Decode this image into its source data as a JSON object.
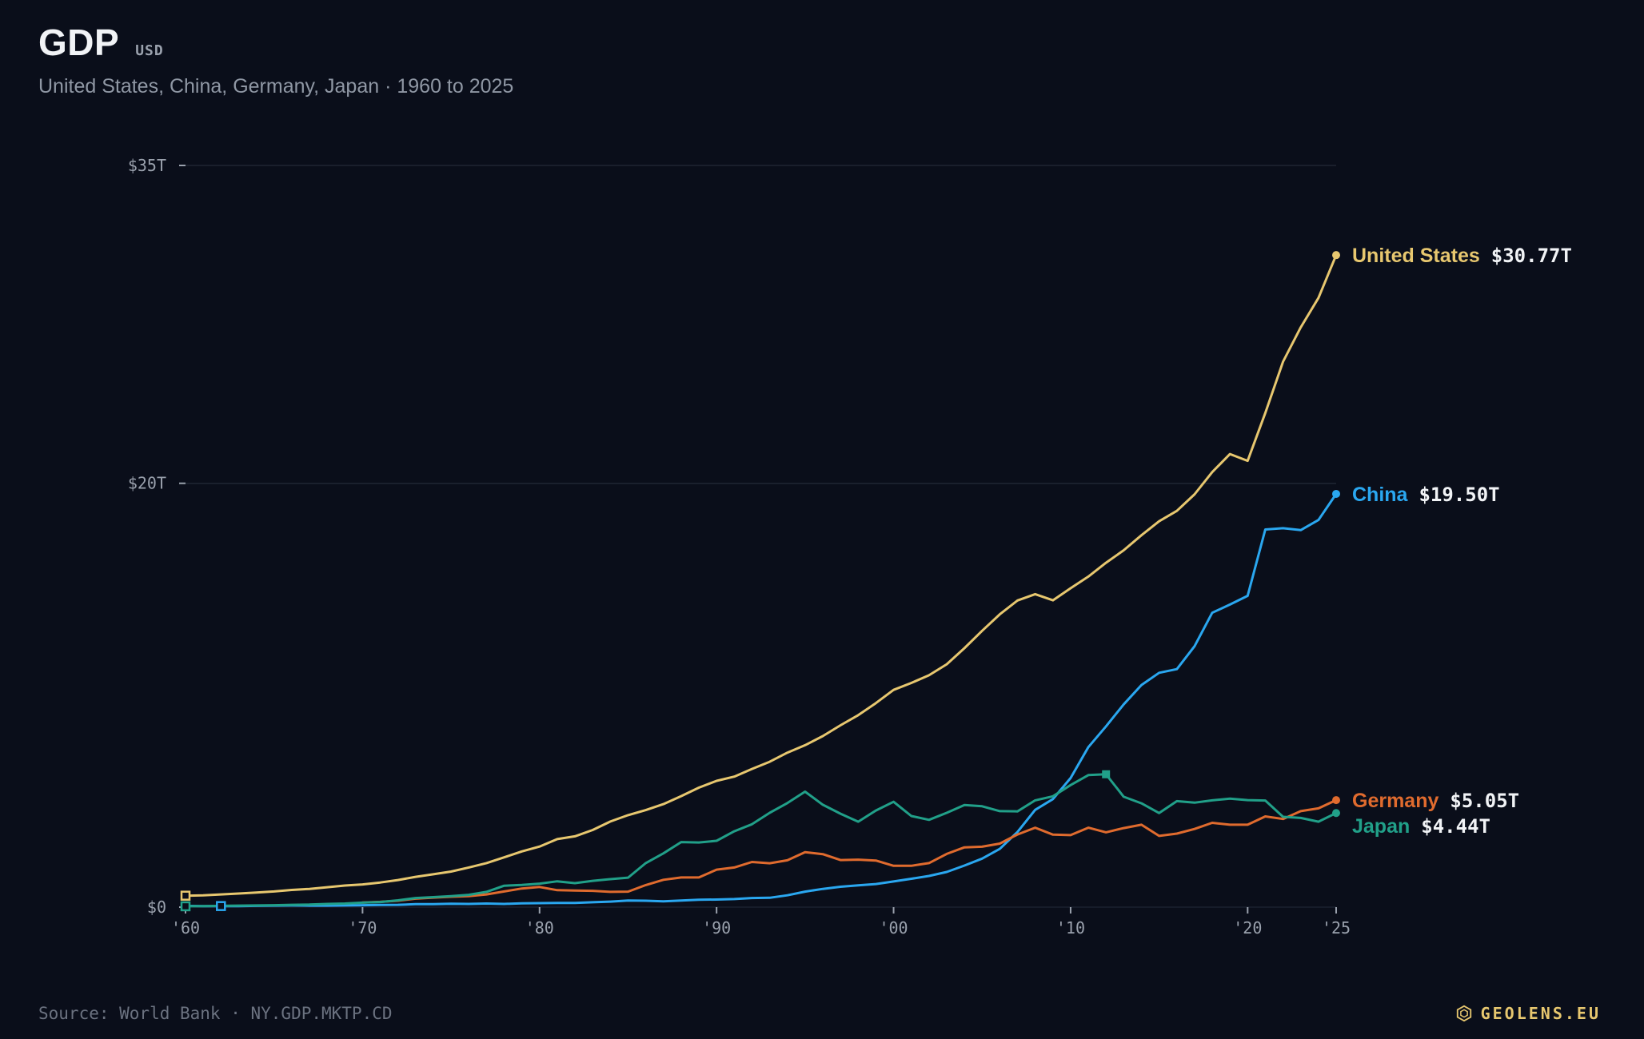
{
  "header": {
    "title": "GDP",
    "unit": "USD",
    "subtitle": "United States, China, Germany, Japan · 1960 to 2025"
  },
  "footer": {
    "source": "Source: World Bank · NY.GDP.MKTP.CD",
    "brand": "GEOLENS.EU",
    "brand_icon": "hexagon-logo-icon"
  },
  "colors": {
    "background": "#0a0e1a",
    "grid": "#1f2533",
    "axis_text": "#9aa1ad",
    "value_text": "#f1f3f6"
  },
  "chart_data": {
    "type": "line",
    "x_range": [
      1960,
      2025
    ],
    "ylim": [
      0,
      35
    ],
    "y_ticks": [
      {
        "value": 0,
        "label": "$0"
      },
      {
        "value": 20,
        "label": "$20T"
      },
      {
        "value": 35,
        "label": "$35T"
      }
    ],
    "x_ticks": [
      {
        "value": 1960,
        "label": "'60"
      },
      {
        "value": 1970,
        "label": "'70"
      },
      {
        "value": 1980,
        "label": "'80"
      },
      {
        "value": 1990,
        "label": "'90"
      },
      {
        "value": 2000,
        "label": "'00"
      },
      {
        "value": 2010,
        "label": "'10"
      },
      {
        "value": 2020,
        "label": "'20"
      },
      {
        "value": 2025,
        "label": "'25"
      }
    ],
    "grid": true,
    "legend": "end-labels",
    "series": [
      {
        "name": "United States",
        "color": "#e7c76f",
        "end_value_label": "$30.77T",
        "start_year": 1960,
        "values": [
          0.54,
          0.56,
          0.6,
          0.64,
          0.69,
          0.74,
          0.81,
          0.86,
          0.94,
          1.02,
          1.07,
          1.16,
          1.28,
          1.43,
          1.55,
          1.68,
          1.87,
          2.08,
          2.35,
          2.63,
          2.86,
          3.21,
          3.34,
          3.64,
          4.04,
          4.34,
          4.58,
          4.86,
          5.24,
          5.64,
          5.96,
          6.16,
          6.52,
          6.86,
          7.29,
          7.64,
          8.07,
          8.58,
          9.06,
          9.63,
          10.25,
          10.58,
          10.94,
          11.46,
          12.22,
          13.04,
          13.82,
          14.47,
          14.77,
          14.48,
          15.05,
          15.6,
          16.25,
          16.84,
          17.55,
          18.21,
          18.7,
          19.48,
          20.53,
          21.38,
          21.06,
          23.32,
          25.74,
          27.36,
          28.75,
          30.77
        ]
      },
      {
        "name": "China",
        "color": "#2aa7f0",
        "end_value_label": "$19.50T",
        "start_year": 1960,
        "values": [
          0.06,
          0.05,
          0.05,
          0.05,
          0.06,
          0.07,
          0.08,
          0.07,
          0.07,
          0.08,
          0.09,
          0.1,
          0.11,
          0.14,
          0.14,
          0.16,
          0.15,
          0.17,
          0.15,
          0.18,
          0.19,
          0.2,
          0.2,
          0.23,
          0.26,
          0.31,
          0.3,
          0.27,
          0.31,
          0.35,
          0.36,
          0.38,
          0.43,
          0.44,
          0.56,
          0.73,
          0.86,
          0.96,
          1.03,
          1.09,
          1.21,
          1.34,
          1.47,
          1.66,
          1.96,
          2.29,
          2.75,
          3.55,
          4.59,
          5.1,
          6.09,
          7.55,
          8.53,
          9.57,
          10.48,
          11.06,
          11.23,
          12.31,
          13.89,
          14.28,
          14.69,
          17.82,
          17.88,
          17.79,
          18.27,
          19.5
        ]
      },
      {
        "name": "Germany",
        "color": "#e06b2e",
        "end_value_label": "$5.05T",
        "start_year": 1970,
        "values": [
          0.22,
          0.25,
          0.3,
          0.4,
          0.45,
          0.49,
          0.52,
          0.6,
          0.74,
          0.88,
          0.95,
          0.8,
          0.78,
          0.77,
          0.72,
          0.73,
          1.04,
          1.29,
          1.4,
          1.4,
          1.77,
          1.87,
          2.13,
          2.07,
          2.21,
          2.59,
          2.5,
          2.22,
          2.24,
          2.2,
          1.95,
          1.95,
          2.08,
          2.51,
          2.82,
          2.85,
          3.0,
          3.43,
          3.75,
          3.42,
          3.4,
          3.75,
          3.53,
          3.73,
          3.89,
          3.36,
          3.47,
          3.69,
          3.98,
          3.89,
          3.89,
          4.28,
          4.16,
          4.53,
          4.66,
          5.05
        ]
      },
      {
        "name": "Japan",
        "color": "#21a089",
        "end_value_label": "$4.44T",
        "start_year": 1960,
        "values": [
          0.04,
          0.05,
          0.06,
          0.07,
          0.08,
          0.09,
          0.11,
          0.12,
          0.15,
          0.17,
          0.21,
          0.24,
          0.32,
          0.43,
          0.47,
          0.52,
          0.58,
          0.72,
          1.01,
          1.05,
          1.11,
          1.22,
          1.13,
          1.24,
          1.32,
          1.39,
          2.08,
          2.54,
          3.07,
          3.05,
          3.13,
          3.58,
          3.91,
          4.45,
          4.91,
          5.45,
          4.83,
          4.41,
          4.03,
          4.56,
          4.97,
          4.3,
          4.12,
          4.45,
          4.82,
          4.76,
          4.53,
          4.52,
          5.04,
          5.23,
          5.76,
          6.23,
          6.27,
          5.21,
          4.9,
          4.44,
          5.0,
          4.93,
          5.04,
          5.12,
          5.05,
          5.03,
          4.26,
          4.21,
          4.03,
          4.44
        ]
      }
    ],
    "markers": [
      {
        "series": "United States",
        "year": 1960,
        "shape": "square-open"
      },
      {
        "series": "China",
        "year": 1962,
        "shape": "square-open"
      },
      {
        "series": "Japan",
        "year": 1960,
        "shape": "square-open"
      },
      {
        "series": "Japan",
        "year": 2012,
        "shape": "square-filled"
      }
    ]
  }
}
